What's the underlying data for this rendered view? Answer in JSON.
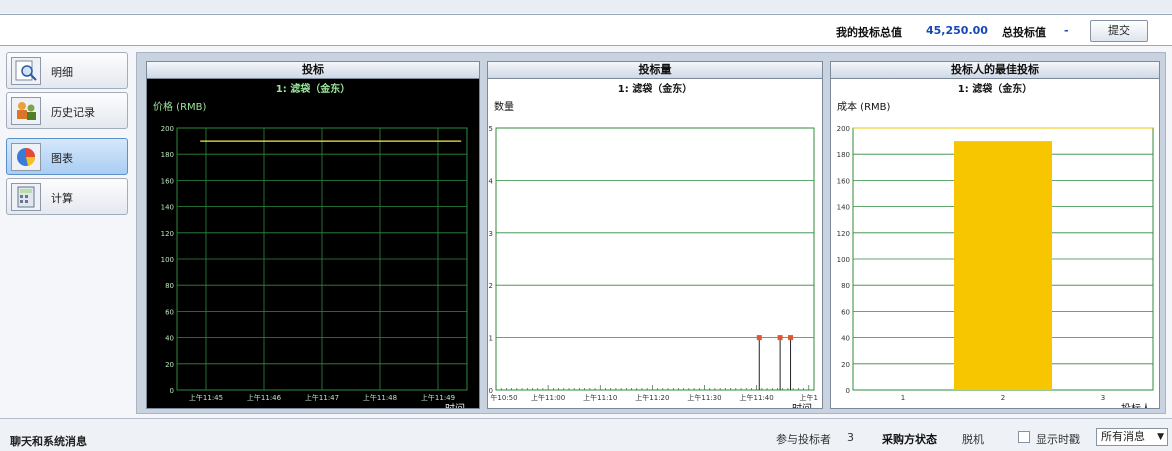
{
  "bid_bar": {
    "my_total_label": "我的投标总值",
    "my_total_value": "45,250.00",
    "total_bid_label": "总投标值",
    "total_bid_value": "-",
    "submit_label": "提交"
  },
  "nav": {
    "items": [
      {
        "label": "明细",
        "icon": "magnifier-doc-icon",
        "active": false
      },
      {
        "label": "历史记录",
        "icon": "history-people-icon",
        "active": false
      },
      {
        "label": "图表",
        "icon": "pie-chart-icon",
        "active": true
      },
      {
        "label": "计算",
        "icon": "calculator-icon",
        "active": false
      }
    ]
  },
  "colors": {
    "bid_line": "#f2f04a",
    "grid_green": "#2e8b3d",
    "bar_fill": "#f7c600",
    "bid_marker": "#e2562a",
    "accent_blue": "#1747b8"
  },
  "chart_data": [
    {
      "type": "line",
      "panel_title": "投标",
      "title": "1: 滤袋（金东）",
      "ylabel": "价格 (RMB)",
      "xlabel": "时间",
      "ylim": [
        0,
        200
      ],
      "y_ticks": [
        "0",
        "20",
        "40",
        "60",
        "80",
        "100",
        "120",
        "140",
        "160",
        "180",
        "200"
      ],
      "x_ticks": [
        "上午11:45",
        "上午11:46",
        "上午11:47",
        "上午11:48",
        "上午11:49"
      ],
      "series": [
        {
          "values_x": [
            0.4,
            4.9
          ],
          "values_y": [
            190,
            190
          ]
        }
      ],
      "background": "dark",
      "grid": true
    },
    {
      "type": "scatter",
      "panel_title": "投标量",
      "title": "1: 滤袋（金东）",
      "ylabel": "数量",
      "xlabel": "时间",
      "ylim": [
        0,
        5
      ],
      "y_ticks": [
        "0",
        "1",
        "2",
        "3",
        "4",
        "5"
      ],
      "x_ticks": [
        "午10:50",
        "上午11:00",
        "上午11:10",
        "上午11:20",
        "上午11:30",
        "上午11:40",
        "上午1"
      ],
      "points": [
        {
          "x_minutes": 50.5,
          "y": 1
        },
        {
          "x_minutes": 54.5,
          "y": 1
        },
        {
          "x_minutes": 56.5,
          "y": 1
        }
      ],
      "grid": true
    },
    {
      "type": "bar",
      "panel_title": "投标人的最佳投标",
      "title": "1: 滤袋（金东）",
      "ylabel": "成本 (RMB)",
      "xlabel": "投标人",
      "ylim": [
        0,
        200
      ],
      "y_ticks": [
        "0",
        "20",
        "40",
        "60",
        "80",
        "100",
        "120",
        "140",
        "160",
        "180",
        "200"
      ],
      "categories": [
        "1",
        "2",
        "3"
      ],
      "values": [
        0,
        190,
        0
      ],
      "grid": true
    }
  ],
  "status_bar": {
    "chat_label": "聊天和系统消息",
    "participants_label": "参与投标者",
    "participants_count": "3",
    "buyer_status_label": "采购方状态",
    "buyer_status_value": "脱机",
    "show_time_label": "显示时戳",
    "filter_value": "所有消息"
  }
}
